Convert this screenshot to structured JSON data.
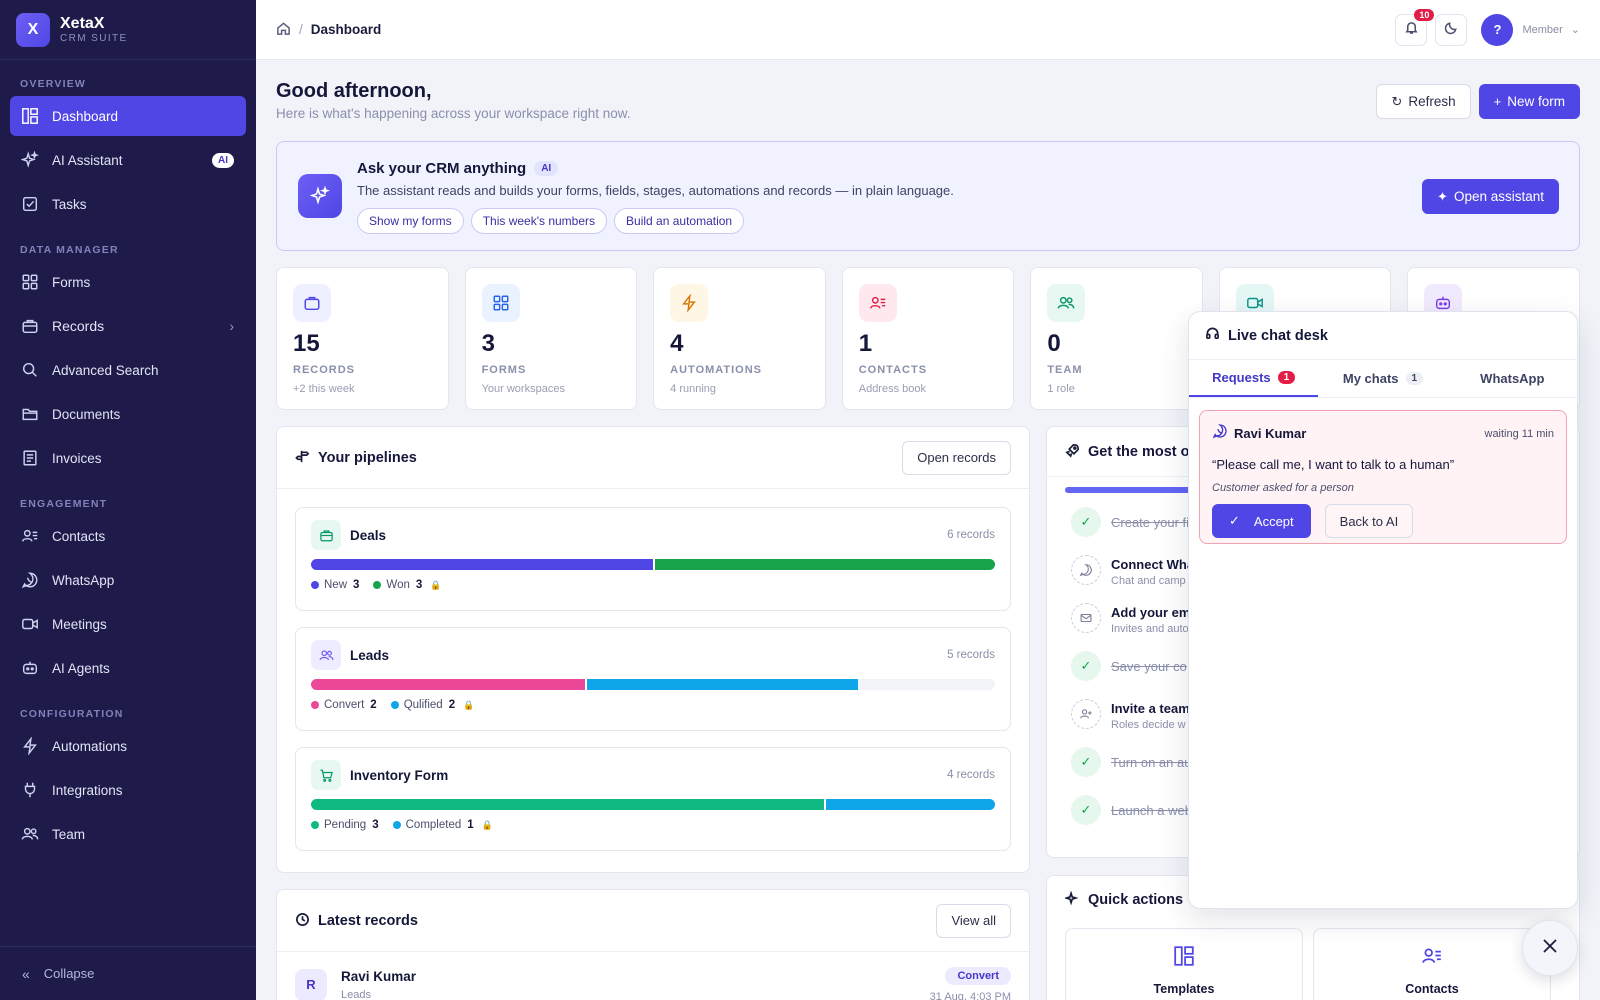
{
  "brand": {
    "logo_letter": "X",
    "name": "XetaX",
    "sub": "CRM SUITE"
  },
  "sidebar": {
    "sections": [
      {
        "label": "OVERVIEW"
      },
      {
        "label": "DATA MANAGER"
      },
      {
        "label": "ENGAGEMENT"
      },
      {
        "label": "CONFIGURATION"
      }
    ],
    "items": [
      {
        "label": "Dashboard",
        "icon": "layout-icon"
      },
      {
        "label": "AI Assistant",
        "icon": "sparkles-icon",
        "badge": "AI"
      },
      {
        "label": "Tasks",
        "icon": "checkbox-icon"
      },
      {
        "label": "Forms",
        "icon": "form-grid-icon"
      },
      {
        "label": "Records",
        "icon": "briefcase-icon"
      },
      {
        "label": "Advanced Search",
        "icon": "search-icon"
      },
      {
        "label": "Documents",
        "icon": "folder-icon"
      },
      {
        "label": "Invoices",
        "icon": "invoice-icon"
      },
      {
        "label": "Contacts",
        "icon": "contacts-icon"
      },
      {
        "label": "WhatsApp",
        "icon": "whatsapp-icon"
      },
      {
        "label": "Meetings",
        "icon": "video-icon"
      },
      {
        "label": "AI Agents",
        "icon": "robot-icon"
      },
      {
        "label": "Automations",
        "icon": "bolt-icon"
      },
      {
        "label": "Integrations",
        "icon": "plug-icon"
      },
      {
        "label": "Team",
        "icon": "users-icon"
      }
    ],
    "collapse_label": "Collapse"
  },
  "topbar": {
    "breadcrumb_current": "Dashboard",
    "notifications_count": "10",
    "avatar_letter": "?",
    "role": "Member"
  },
  "header": {
    "greeting": "Good afternoon,",
    "sub": "Here is what's happening across your workspace right now.",
    "refresh_label": "Refresh",
    "new_form_label": "New form"
  },
  "ai_card": {
    "title": "Ask your CRM anything",
    "tag": "AI",
    "description": "The assistant reads and builds your forms, fields, stages, automations and records — in plain language.",
    "chips": [
      "Show my forms",
      "This week's numbers",
      "Build an automation"
    ],
    "open_label": "Open assistant"
  },
  "stats": [
    {
      "value": "15",
      "label": "RECORDS",
      "sub": "+2 this week",
      "color": "#4f46e5",
      "bg": "#eef0ff"
    },
    {
      "value": "3",
      "label": "FORMS",
      "sub": "Your workspaces",
      "color": "#2563eb",
      "bg": "#eaf2ff"
    },
    {
      "value": "4",
      "label": "AUTOMATIONS",
      "sub": "4 running",
      "color": "#d97706",
      "bg": "#fff7e6"
    },
    {
      "value": "1",
      "label": "CONTACTS",
      "sub": "Address book",
      "color": "#e11d48",
      "bg": "#ffe9ee"
    },
    {
      "value": "0",
      "label": "TEAM",
      "sub": "1 role",
      "color": "#059669",
      "bg": "#e6f8f1"
    },
    {
      "value": "",
      "label": "",
      "sub": "",
      "color": "#0d9488",
      "bg": "#e4f7f5"
    },
    {
      "value": "",
      "label": "",
      "sub": "",
      "color": "#7c3aed",
      "bg": "#f1eafe"
    }
  ],
  "pipelines": {
    "title": "Your pipelines",
    "open_label": "Open records",
    "items": [
      {
        "name": "Deals",
        "count": "6 records",
        "icon_color": "#059669",
        "icon_bg": "#e6f8f1",
        "total": 6,
        "stages": [
          {
            "label": "New",
            "value": 3,
            "color": "#4f46e5"
          },
          {
            "label": "Won",
            "value": 3,
            "color": "#16a34a"
          }
        ]
      },
      {
        "name": "Leads",
        "count": "5 records",
        "icon_color": "#6d5ff5",
        "icon_bg": "#eeedff",
        "total": 5,
        "stages": [
          {
            "label": "Convert",
            "value": 2,
            "color": "#ec4899"
          },
          {
            "label": "Qulified",
            "value": 2,
            "color": "#0ea5e9"
          }
        ]
      },
      {
        "name": "Inventory Form",
        "count": "4 records",
        "icon_color": "#059669",
        "icon_bg": "#e6f8f1",
        "total": 4,
        "stages": [
          {
            "label": "Pending",
            "value": 3,
            "color": "#10b981"
          },
          {
            "label": "Completed",
            "value": 1,
            "color": "#0ea5e9"
          }
        ]
      }
    ]
  },
  "latest": {
    "title": "Latest records",
    "view_all_label": "View all",
    "rows": [
      {
        "initial": "R",
        "name": "Ravi Kumar",
        "sub": "Leads",
        "badge": "Convert",
        "date": "31 Aug, 4:03 PM"
      }
    ]
  },
  "getting_started": {
    "title": "Get the most ou",
    "progress": 0.72,
    "steps": [
      {
        "title": "Create your fi",
        "done": true
      },
      {
        "title": "Connect Wha",
        "sub": "Chat and camp",
        "done": false,
        "icon": "whatsapp-icon"
      },
      {
        "title": "Add your em",
        "sub": "Invites and auto",
        "done": false,
        "icon": "mail-icon"
      },
      {
        "title": "Save your co",
        "done": true
      },
      {
        "title": "Invite a team",
        "sub": "Roles decide w",
        "done": false,
        "icon": "user-plus-icon"
      },
      {
        "title": "Turn on an au",
        "done": true
      },
      {
        "title": "Launch a web",
        "done": true
      }
    ]
  },
  "quick_actions": {
    "title": "Quick actions",
    "items": [
      {
        "label": "Templates",
        "icon": "layout-icon"
      },
      {
        "label": "Contacts",
        "icon": "contacts-icon"
      }
    ]
  },
  "chat_desk": {
    "title": "Live chat desk",
    "tabs": [
      {
        "label": "Requests",
        "count": "1"
      },
      {
        "label": "My chats",
        "count": "1"
      },
      {
        "label": "WhatsApp",
        "count": ""
      }
    ],
    "request": {
      "name": "Ravi Kumar",
      "waiting": "waiting 11 min",
      "message": "“Please call me, I want to talk to a human”",
      "note": "Customer asked for a person",
      "accept_label": "Accept",
      "back_label": "Back to AI"
    }
  }
}
